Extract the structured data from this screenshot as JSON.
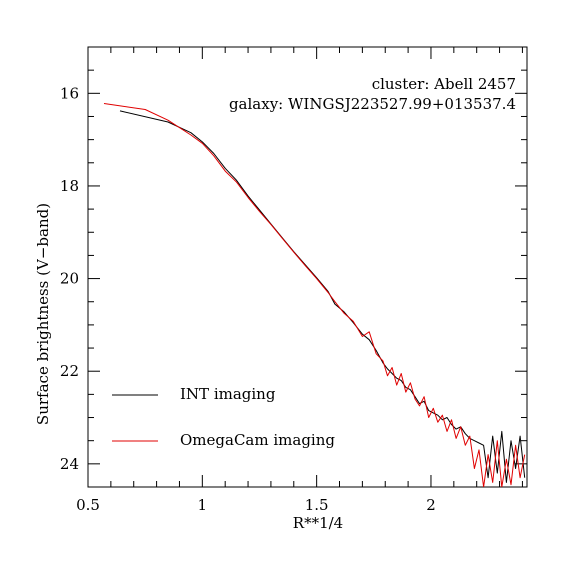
{
  "chart_data": {
    "type": "line",
    "title": "",
    "xlabel": "R**1/4",
    "ylabel": "Surface brightness (V−band)",
    "xlim": [
      0.5,
      2.42
    ],
    "ylim": [
      24.5,
      15.0
    ],
    "y_inverted": true,
    "grid": false,
    "legend_position": "bottom-left",
    "annotations": [
      "cluster: Abell 2457",
      "galaxy: WINGSJ223527.99+013537.4"
    ],
    "x_ticks": [
      0.5,
      1,
      1.5,
      2
    ],
    "x_tick_labels": [
      "0.5",
      "1",
      "1.5",
      "2"
    ],
    "y_ticks": [
      16,
      18,
      20,
      22,
      24
    ],
    "y_tick_labels": [
      "16",
      "18",
      "20",
      "22",
      "24"
    ],
    "series": [
      {
        "name": "INT imaging",
        "color": "#000000",
        "points": [
          [
            0.64,
            16.38
          ],
          [
            0.85,
            16.62
          ],
          [
            0.95,
            16.85
          ],
          [
            1.0,
            17.05
          ],
          [
            1.05,
            17.3
          ],
          [
            1.1,
            17.62
          ],
          [
            1.15,
            17.88
          ],
          [
            1.2,
            18.22
          ],
          [
            1.25,
            18.52
          ],
          [
            1.3,
            18.82
          ],
          [
            1.35,
            19.12
          ],
          [
            1.4,
            19.42
          ],
          [
            1.45,
            19.7
          ],
          [
            1.5,
            19.98
          ],
          [
            1.55,
            20.28
          ],
          [
            1.58,
            20.55
          ],
          [
            1.62,
            20.72
          ],
          [
            1.66,
            20.95
          ],
          [
            1.7,
            21.2
          ],
          [
            1.73,
            21.32
          ],
          [
            1.76,
            21.55
          ],
          [
            1.79,
            21.82
          ],
          [
            1.81,
            21.95
          ],
          [
            1.83,
            22.05
          ],
          [
            1.85,
            22.15
          ],
          [
            1.87,
            22.2
          ],
          [
            1.89,
            22.35
          ],
          [
            1.91,
            22.4
          ],
          [
            1.93,
            22.55
          ],
          [
            1.95,
            22.7
          ],
          [
            1.97,
            22.65
          ],
          [
            1.99,
            22.85
          ],
          [
            2.01,
            22.9
          ],
          [
            2.03,
            22.95
          ],
          [
            2.05,
            23.05
          ],
          [
            2.07,
            23.0
          ],
          [
            2.09,
            23.15
          ],
          [
            2.11,
            23.25
          ],
          [
            2.13,
            23.2
          ],
          [
            2.15,
            23.35
          ],
          [
            2.17,
            23.45
          ],
          [
            2.19,
            23.5
          ],
          [
            2.21,
            23.55
          ],
          [
            2.23,
            23.6
          ],
          [
            2.25,
            24.3
          ],
          [
            2.27,
            23.4
          ],
          [
            2.29,
            24.2
          ],
          [
            2.31,
            23.3
          ],
          [
            2.33,
            24.4
          ],
          [
            2.35,
            23.5
          ],
          [
            2.37,
            24.1
          ],
          [
            2.39,
            23.4
          ],
          [
            2.41,
            24.3
          ]
        ]
      },
      {
        "name": "OmegaCam imaging",
        "color": "#e00000",
        "points": [
          [
            0.57,
            16.22
          ],
          [
            0.75,
            16.35
          ],
          [
            0.85,
            16.58
          ],
          [
            0.95,
            16.9
          ],
          [
            1.0,
            17.08
          ],
          [
            1.05,
            17.35
          ],
          [
            1.1,
            17.68
          ],
          [
            1.15,
            17.92
          ],
          [
            1.2,
            18.25
          ],
          [
            1.25,
            18.55
          ],
          [
            1.3,
            18.83
          ],
          [
            1.35,
            19.13
          ],
          [
            1.4,
            19.43
          ],
          [
            1.45,
            19.72
          ],
          [
            1.5,
            20.0
          ],
          [
            1.55,
            20.3
          ],
          [
            1.58,
            20.5
          ],
          [
            1.62,
            20.75
          ],
          [
            1.66,
            20.92
          ],
          [
            1.7,
            21.25
          ],
          [
            1.73,
            21.15
          ],
          [
            1.76,
            21.62
          ],
          [
            1.79,
            21.78
          ],
          [
            1.81,
            22.1
          ],
          [
            1.83,
            21.92
          ],
          [
            1.85,
            22.3
          ],
          [
            1.87,
            22.05
          ],
          [
            1.89,
            22.45
          ],
          [
            1.91,
            22.25
          ],
          [
            1.93,
            22.6
          ],
          [
            1.95,
            22.75
          ],
          [
            1.97,
            22.55
          ],
          [
            1.99,
            23.0
          ],
          [
            2.01,
            22.8
          ],
          [
            2.03,
            23.1
          ],
          [
            2.05,
            22.95
          ],
          [
            2.07,
            23.3
          ],
          [
            2.09,
            23.05
          ],
          [
            2.11,
            23.45
          ],
          [
            2.13,
            23.2
          ],
          [
            2.15,
            23.6
          ],
          [
            2.17,
            23.4
          ],
          [
            2.19,
            24.1
          ],
          [
            2.21,
            23.7
          ],
          [
            2.23,
            24.5
          ],
          [
            2.25,
            23.8
          ],
          [
            2.27,
            24.4
          ],
          [
            2.29,
            23.5
          ],
          [
            2.31,
            24.5
          ],
          [
            2.33,
            23.9
          ],
          [
            2.35,
            24.45
          ],
          [
            2.37,
            23.6
          ],
          [
            2.39,
            24.3
          ],
          [
            2.41,
            23.8
          ]
        ]
      }
    ]
  }
}
